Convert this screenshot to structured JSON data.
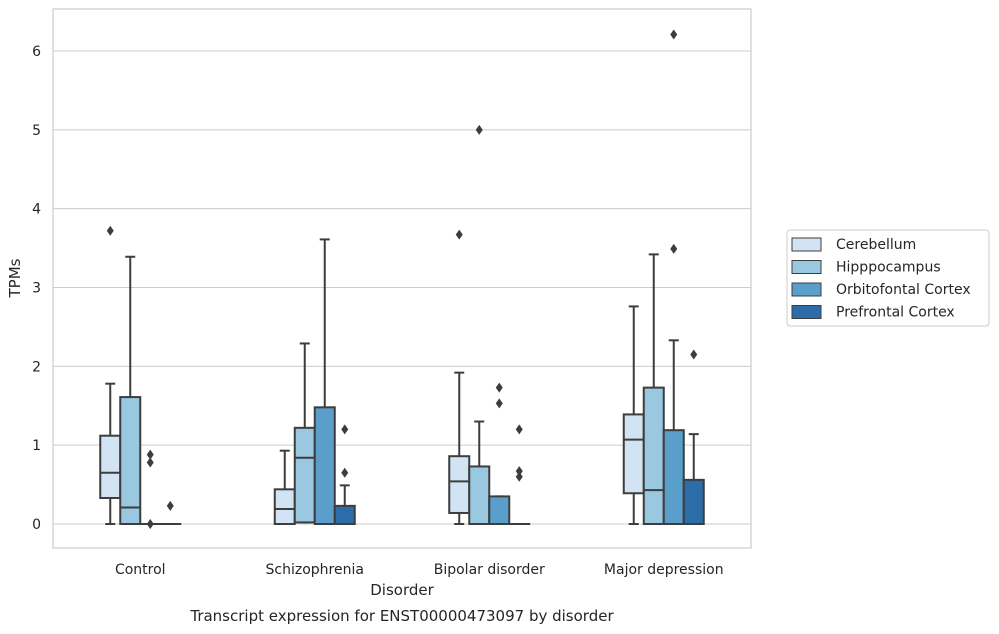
{
  "chart_data": {
    "type": "box",
    "title": "Transcript expression for ENST00000473097 by disorder",
    "xlabel": "Disorder",
    "ylabel": "TPMs",
    "ylim": [
      -0.3,
      6.55
    ],
    "yticks": [
      0,
      1,
      2,
      3,
      4,
      5,
      6
    ],
    "grid": true,
    "legend_position": "right",
    "categories": [
      "Control",
      "Schizophrenia",
      "Bipolar disorder",
      "Major depression"
    ],
    "series": [
      {
        "name": "Cerebellum",
        "color": "#d2e3f3",
        "boxes": [
          {
            "low": 0.0,
            "q1": 0.33,
            "median": 0.65,
            "q3": 1.12,
            "high": 1.78,
            "outliers": [
              3.72
            ]
          },
          {
            "low": 0.0,
            "q1": 0.0,
            "median": 0.19,
            "q3": 0.44,
            "high": 0.93,
            "outliers": []
          },
          {
            "low": 0.0,
            "q1": 0.14,
            "median": 0.54,
            "q3": 0.86,
            "high": 1.92,
            "outliers": [
              3.67
            ]
          },
          {
            "low": 0.0,
            "q1": 0.39,
            "median": 1.07,
            "q3": 1.39,
            "high": 2.76,
            "outliers": []
          }
        ]
      },
      {
        "name": "Hipppocampus",
        "color": "#9ac8e0",
        "boxes": [
          {
            "low": 0.0,
            "q1": 0.0,
            "median": 0.21,
            "q3": 1.61,
            "high": 3.39,
            "outliers": []
          },
          {
            "low": 0.02,
            "q1": 0.02,
            "median": 0.84,
            "q3": 1.22,
            "high": 2.29,
            "outliers": []
          },
          {
            "low": 0.0,
            "q1": 0.0,
            "median": 0.0,
            "q3": 0.73,
            "high": 1.3,
            "outliers": [
              5.0
            ]
          },
          {
            "low": 0.0,
            "q1": 0.0,
            "median": 0.43,
            "q3": 1.73,
            "high": 3.42,
            "outliers": []
          }
        ]
      },
      {
        "name": "Orbitofontal Cortex",
        "color": "#5a9fcb",
        "boxes": [
          {
            "low": 0.0,
            "q1": 0.0,
            "median": 0.0,
            "q3": 0.0,
            "high": 0.0,
            "outliers": [
              0.0,
              0.78,
              0.88
            ]
          },
          {
            "low": 0.0,
            "q1": 0.0,
            "median": 0.0,
            "q3": 1.48,
            "high": 3.61,
            "outliers": []
          },
          {
            "low": 0.0,
            "q1": 0.0,
            "median": 0.0,
            "q3": 0.35,
            "high": 0.35,
            "outliers": [
              1.53,
              1.73
            ]
          },
          {
            "low": 0.0,
            "q1": 0.0,
            "median": 0.0,
            "q3": 1.19,
            "high": 2.33,
            "outliers": [
              3.49,
              6.21
            ]
          }
        ]
      },
      {
        "name": "Prefrontal Cortex",
        "color": "#2b6ca9",
        "boxes": [
          {
            "low": 0.0,
            "q1": 0.0,
            "median": 0.0,
            "q3": 0.0,
            "high": 0.0,
            "outliers": [
              0.23
            ]
          },
          {
            "low": 0.0,
            "q1": 0.0,
            "median": 0.0,
            "q3": 0.23,
            "high": 0.49,
            "outliers": [
              0.65,
              1.2
            ]
          },
          {
            "low": 0.0,
            "q1": 0.0,
            "median": 0.0,
            "q3": 0.0,
            "high": 0.0,
            "outliers": [
              0.6,
              0.67,
              1.2
            ]
          },
          {
            "low": 0.0,
            "q1": 0.0,
            "median": 0.0,
            "q3": 0.56,
            "high": 1.14,
            "outliers": [
              2.15
            ]
          }
        ]
      }
    ]
  }
}
